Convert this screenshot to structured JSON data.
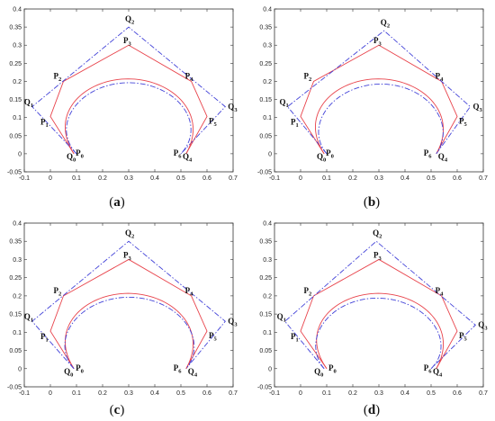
{
  "chart_data": [
    {
      "caption": "(a)",
      "type": "line",
      "xlim": [
        -0.1,
        0.7
      ],
      "ylim": [
        -0.05,
        0.4
      ],
      "x_ticks": [
        "-0.1",
        "0",
        "0.1",
        "0.2",
        "0.3",
        "0.4",
        "0.5",
        "0.6",
        "0.7"
      ],
      "y_ticks": [
        "-0.05",
        "0",
        "0.05",
        "0.1",
        "0.15",
        "0.2",
        "0.25",
        "0.3",
        "0.35",
        "0.4"
      ],
      "P_points": [
        {
          "label": "P",
          "sub": "0",
          "x": 0.09,
          "y": 0.0
        },
        {
          "label": "P",
          "sub": "1",
          "x": 0.0,
          "y": 0.103
        },
        {
          "label": "P",
          "sub": "2",
          "x": 0.05,
          "y": 0.2
        },
        {
          "label": "P",
          "sub": "3",
          "x": 0.3,
          "y": 0.3
        },
        {
          "label": "P",
          "sub": "4",
          "x": 0.54,
          "y": 0.2
        },
        {
          "label": "P",
          "sub": "5",
          "x": 0.6,
          "y": 0.103
        },
        {
          "label": "P",
          "sub": "6",
          "x": 0.52,
          "y": 0.0
        }
      ],
      "Q_points": [
        {
          "label": "Q",
          "sub": "0",
          "x": 0.1,
          "y": 0.0
        },
        {
          "label": "Q",
          "sub": "1",
          "x": -0.07,
          "y": 0.13
        },
        {
          "label": "Q",
          "sub": "2",
          "x": 0.3,
          "y": 0.35
        },
        {
          "label": "Q",
          "sub": "3",
          "x": 0.67,
          "y": 0.13
        },
        {
          "label": "Q",
          "sub": "4",
          "x": 0.5,
          "y": 0.0
        }
      ]
    },
    {
      "caption": "(b)",
      "type": "line",
      "xlim": [
        -0.1,
        0.7
      ],
      "ylim": [
        -0.05,
        0.4
      ],
      "x_ticks": [
        "-0.1",
        "0",
        "0.1",
        "0.2",
        "0.3",
        "0.4",
        "0.5",
        "0.6",
        "0.7"
      ],
      "y_ticks": [
        "-0.05",
        "0",
        "0.05",
        "0.1",
        "0.15",
        "0.2",
        "0.25",
        "0.3",
        "0.35",
        "0.4"
      ],
      "P_points": [
        {
          "label": "P",
          "sub": "0",
          "x": 0.09,
          "y": 0.0
        },
        {
          "label": "P",
          "sub": "1",
          "x": 0.0,
          "y": 0.103
        },
        {
          "label": "P",
          "sub": "2",
          "x": 0.05,
          "y": 0.2
        },
        {
          "label": "P",
          "sub": "3",
          "x": 0.3,
          "y": 0.3
        },
        {
          "label": "P",
          "sub": "4",
          "x": 0.54,
          "y": 0.2
        },
        {
          "label": "P",
          "sub": "5",
          "x": 0.6,
          "y": 0.103
        },
        {
          "label": "P",
          "sub": "6",
          "x": 0.52,
          "y": 0.0
        }
      ],
      "Q_points": [
        {
          "label": "Q",
          "sub": "0",
          "x": 0.1,
          "y": 0.0
        },
        {
          "label": "Q",
          "sub": "1",
          "x": -0.05,
          "y": 0.13
        },
        {
          "label": "Q",
          "sub": "2",
          "x": 0.32,
          "y": 0.34
        },
        {
          "label": "Q",
          "sub": "3",
          "x": 0.65,
          "y": 0.13
        },
        {
          "label": "Q",
          "sub": "4",
          "x": 0.52,
          "y": 0.0
        }
      ]
    },
    {
      "caption": "(c)",
      "type": "line",
      "xlim": [
        -0.1,
        0.7
      ],
      "ylim": [
        -0.05,
        0.4
      ],
      "x_ticks": [
        "-0.1",
        "0",
        "0.1",
        "0.2",
        "0.3",
        "0.4",
        "0.5",
        "0.6",
        "0.7"
      ],
      "y_ticks": [
        "-0.05",
        "0",
        "0.05",
        "0.1",
        "0.15",
        "0.2",
        "0.25",
        "0.3",
        "0.35",
        "0.4"
      ],
      "P_points": [
        {
          "label": "P",
          "sub": "0",
          "x": 0.09,
          "y": 0.0
        },
        {
          "label": "P",
          "sub": "1",
          "x": 0.0,
          "y": 0.103
        },
        {
          "label": "P",
          "sub": "2",
          "x": 0.05,
          "y": 0.2
        },
        {
          "label": "P",
          "sub": "3",
          "x": 0.3,
          "y": 0.3
        },
        {
          "label": "P",
          "sub": "4",
          "x": 0.54,
          "y": 0.2
        },
        {
          "label": "P",
          "sub": "5",
          "x": 0.6,
          "y": 0.103
        },
        {
          "label": "P",
          "sub": "6",
          "x": 0.52,
          "y": 0.0
        }
      ],
      "Q_points": [
        {
          "label": "Q",
          "sub": "0",
          "x": 0.09,
          "y": 0.0
        },
        {
          "label": "Q",
          "sub": "1",
          "x": -0.07,
          "y": 0.13
        },
        {
          "label": "Q",
          "sub": "2",
          "x": 0.3,
          "y": 0.35
        },
        {
          "label": "Q",
          "sub": "3",
          "x": 0.67,
          "y": 0.13
        },
        {
          "label": "Q",
          "sub": "4",
          "x": 0.52,
          "y": 0.0
        }
      ]
    },
    {
      "caption": "(d)",
      "type": "line",
      "xlim": [
        -0.1,
        0.7
      ],
      "ylim": [
        -0.05,
        0.4
      ],
      "x_ticks": [
        "-0.1",
        "0",
        "0.1",
        "0.2",
        "0.3",
        "0.4",
        "0.5",
        "0.6",
        "0.7"
      ],
      "y_ticks": [
        "-0.05",
        "0",
        "0.05",
        "0.1",
        "0.15",
        "0.2",
        "0.25",
        "0.3",
        "0.35",
        "0.4"
      ],
      "P_points": [
        {
          "label": "P",
          "sub": "0",
          "x": 0.1,
          "y": 0.0
        },
        {
          "label": "P",
          "sub": "1",
          "x": 0.0,
          "y": 0.103
        },
        {
          "label": "P",
          "sub": "2",
          "x": 0.05,
          "y": 0.2
        },
        {
          "label": "P",
          "sub": "3",
          "x": 0.3,
          "y": 0.3
        },
        {
          "label": "P",
          "sub": "4",
          "x": 0.54,
          "y": 0.2
        },
        {
          "label": "P",
          "sub": "5",
          "x": 0.6,
          "y": 0.103
        },
        {
          "label": "P",
          "sub": "6",
          "x": 0.52,
          "y": 0.0
        }
      ],
      "Q_points": [
        {
          "label": "Q",
          "sub": "0",
          "x": 0.09,
          "y": 0.0
        },
        {
          "label": "Q",
          "sub": "1",
          "x": -0.06,
          "y": 0.13
        },
        {
          "label": "Q",
          "sub": "2",
          "x": 0.29,
          "y": 0.35
        },
        {
          "label": "Q",
          "sub": "3",
          "x": 0.67,
          "y": 0.12
        },
        {
          "label": "Q",
          "sub": "4",
          "x": 0.5,
          "y": 0.0
        }
      ]
    }
  ],
  "colors": {
    "p_polygon": "#e8434b",
    "q_polygon": "#4242d8",
    "curve_p": "#e8434b",
    "curve_q": "#4242d8",
    "axes": "#333333"
  }
}
